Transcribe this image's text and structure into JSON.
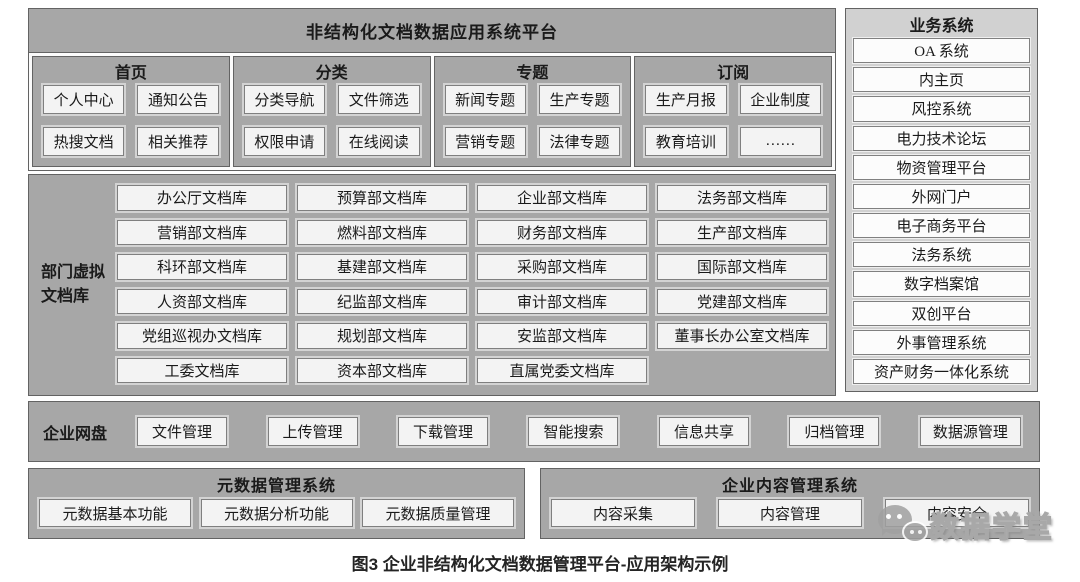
{
  "platform": {
    "title": "非结构化文档数据应用系统平台",
    "columns": [
      {
        "header": "首页",
        "buttons": [
          "个人中心",
          "通知公告",
          "热搜文档",
          "相关推荐"
        ]
      },
      {
        "header": "分类",
        "buttons": [
          "分类导航",
          "文件筛选",
          "权限申请",
          "在线阅读"
        ]
      },
      {
        "header": "专题",
        "buttons": [
          "新闻专题",
          "生产专题",
          "营销专题",
          "法律专题"
        ]
      },
      {
        "header": "订阅",
        "buttons": [
          "生产月报",
          "企业制度",
          "教育培训",
          "……"
        ]
      }
    ]
  },
  "dept_library": {
    "label": "部门虚拟文档库",
    "columns": [
      [
        "办公厅文档库",
        "营销部文档库",
        "科环部文档库",
        "人资部文档库",
        "党组巡视办文档库",
        "工委文档库"
      ],
      [
        "预算部文档库",
        "燃料部文档库",
        "基建部文档库",
        "纪监部文档库",
        "规划部文档库",
        "资本部文档库"
      ],
      [
        "企业部文档库",
        "财务部文档库",
        "采购部文档库",
        "审计部文档库",
        "安监部文档库",
        "直属党委文档库"
      ],
      [
        "法务部文档库",
        "生产部文档库",
        "国际部文档库",
        "党建部文档库",
        "董事长办公室文档库"
      ]
    ]
  },
  "net_disk": {
    "label": "企业网盘",
    "buttons": [
      "文件管理",
      "上传管理",
      "下载管理",
      "智能搜索",
      "信息共享",
      "归档管理",
      "数据源管理"
    ]
  },
  "metadata_system": {
    "title": "元数据管理系统",
    "buttons": [
      "元数据基本功能",
      "元数据分析功能",
      "元数据质量管理"
    ]
  },
  "content_system": {
    "title": "企业内容管理系统",
    "buttons": [
      "内容采集",
      "内容管理",
      "内容安全"
    ]
  },
  "business_systems": {
    "title": "业务系统",
    "items": [
      "OA 系统",
      "内主页",
      "风控系统",
      "电力技术论坛",
      "物资管理平台",
      "外网门户",
      "电子商务平台",
      "法务系统",
      "数字档案馆",
      "双创平台",
      "外事管理系统",
      "资产财务一体化系统"
    ]
  },
  "caption": "图3 企业非结构化文档数据管理平台-应用架构示例",
  "watermark": {
    "icon": "wechat-icon",
    "text": "数据学堂"
  },
  "colors": {
    "box_fill": "#a7a7a7",
    "sidebar_fill": "#d1d1d1",
    "button_fill": "#f3f3f3",
    "box_border": "#636363",
    "button_border": "#7f7f7f",
    "text": "#1a1a1a",
    "watermark_gray": "#a0a0a0"
  }
}
